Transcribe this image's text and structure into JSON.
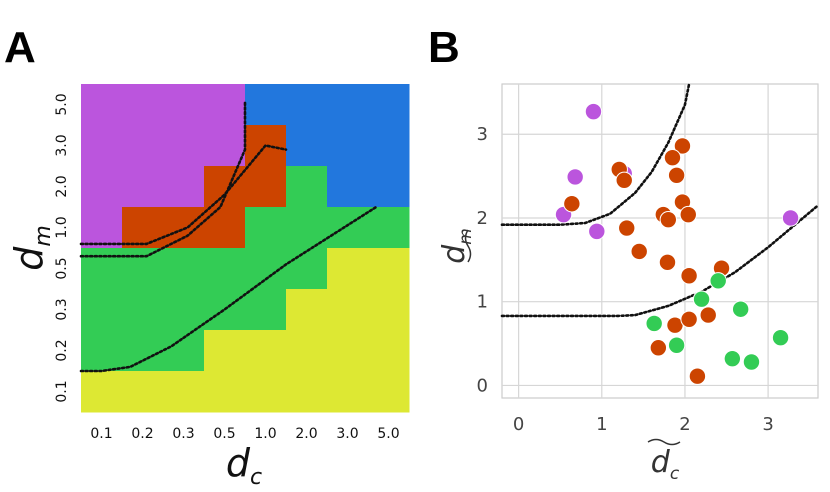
{
  "chart_data": [
    {
      "panel": "A",
      "type": "heatmap",
      "xlabel": "d",
      "xlabel_sub": "c",
      "ylabel": "d",
      "ylabel_sub": "m",
      "x_ticks": [
        "0.1",
        "0.2",
        "0.3",
        "0.5",
        "1.0",
        "2.0",
        "3.0",
        "5.0"
      ],
      "y_ticks": [
        "0.1",
        "0.2",
        "0.3",
        "0.5",
        "1.0",
        "2.0",
        "3.0",
        "5.0"
      ],
      "colors": {
        "purple": "#bb55dd",
        "red": "#cc4400",
        "green": "#33cc55",
        "yellow": "#dde833",
        "blue": "#2277dd"
      },
      "grid_rows_top_to_bottom": [
        [
          "purple",
          "purple",
          "purple",
          "purple",
          "blue",
          "blue",
          "blue",
          "blue"
        ],
        [
          "purple",
          "purple",
          "purple",
          "purple",
          "red",
          "blue",
          "blue",
          "blue"
        ],
        [
          "purple",
          "purple",
          "purple",
          "red",
          "red",
          "green",
          "blue",
          "blue"
        ],
        [
          "purple",
          "red",
          "red",
          "red",
          "green",
          "green",
          "green",
          "green"
        ],
        [
          "green",
          "green",
          "green",
          "green",
          "green",
          "green",
          "yellow",
          "yellow"
        ],
        [
          "green",
          "green",
          "green",
          "green",
          "green",
          "yellow",
          "yellow",
          "yellow"
        ],
        [
          "green",
          "green",
          "green",
          "yellow",
          "yellow",
          "yellow",
          "yellow",
          "yellow"
        ],
        [
          "yellow",
          "yellow",
          "yellow",
          "yellow",
          "yellow",
          "yellow",
          "yellow",
          "yellow"
        ]
      ],
      "boundary_curves": [
        [
          [
            0,
            3.8
          ],
          [
            1,
            3.8
          ],
          [
            1.6,
            3.8
          ],
          [
            2.6,
            4.3
          ],
          [
            3.4,
            5.0
          ],
          [
            4.0,
            6.4
          ],
          [
            4.0,
            7.6
          ]
        ],
        [
          [
            0,
            4.1
          ],
          [
            1,
            4.1
          ],
          [
            1.6,
            4.1
          ],
          [
            2.6,
            4.5
          ],
          [
            3.5,
            5.3
          ],
          [
            4.5,
            6.5
          ],
          [
            5.0,
            6.4
          ]
        ],
        [
          [
            0,
            1.0
          ],
          [
            0.5,
            1.0
          ],
          [
            1.2,
            1.1
          ],
          [
            2.2,
            1.6
          ],
          [
            3.5,
            2.5
          ],
          [
            5.0,
            3.6
          ],
          [
            7.2,
            5.0
          ]
        ]
      ]
    },
    {
      "panel": "B",
      "type": "scatter",
      "xlabel": "d",
      "xlabel_sub": "c",
      "ylabel": "d",
      "ylabel_sub": "m",
      "xlim": [
        -0.2,
        3.6
      ],
      "ylim": [
        -0.15,
        3.6
      ],
      "x_ticks": [
        0,
        1,
        2,
        3
      ],
      "y_ticks": [
        0,
        1,
        2,
        3
      ],
      "colors": {
        "purple": "#bb55dd",
        "red": "#cc4400",
        "green": "#33cc55"
      },
      "series": [
        {
          "name": "purple",
          "points": [
            [
              0.9,
              3.27
            ],
            [
              0.68,
              2.49
            ],
            [
              0.54,
              2.04
            ],
            [
              0.94,
              1.84
            ],
            [
              1.27,
              2.53
            ],
            [
              3.27,
              2.0
            ]
          ]
        },
        {
          "name": "red",
          "points": [
            [
              1.97,
              2.86
            ],
            [
              1.21,
              2.58
            ],
            [
              1.85,
              2.72
            ],
            [
              1.27,
              2.45
            ],
            [
              1.9,
              2.51
            ],
            [
              0.64,
              2.17
            ],
            [
              1.97,
              2.19
            ],
            [
              1.74,
              2.04
            ],
            [
              2.04,
              2.04
            ],
            [
              1.8,
              1.98
            ],
            [
              1.3,
              1.88
            ],
            [
              1.45,
              1.6
            ],
            [
              1.79,
              1.47
            ],
            [
              2.05,
              1.31
            ],
            [
              2.44,
              1.4
            ],
            [
              1.88,
              0.72
            ],
            [
              2.05,
              0.79
            ],
            [
              2.28,
              0.84
            ],
            [
              1.68,
              0.45
            ],
            [
              2.15,
              0.11
            ]
          ]
        },
        {
          "name": "green",
          "points": [
            [
              2.2,
              1.03
            ],
            [
              2.4,
              1.25
            ],
            [
              1.63,
              0.74
            ],
            [
              2.67,
              0.91
            ],
            [
              1.9,
              0.48
            ],
            [
              2.57,
              0.32
            ],
            [
              2.8,
              0.28
            ],
            [
              3.15,
              0.57
            ]
          ]
        }
      ],
      "curves": [
        [
          [
            -0.2,
            1.92
          ],
          [
            0.5,
            1.92
          ],
          [
            0.8,
            1.94
          ],
          [
            1.1,
            2.05
          ],
          [
            1.4,
            2.3
          ],
          [
            1.6,
            2.55
          ],
          [
            1.8,
            2.9
          ],
          [
            2.0,
            3.35
          ],
          [
            2.05,
            3.6
          ]
        ],
        [
          [
            -0.2,
            0.83
          ],
          [
            1.2,
            0.83
          ],
          [
            1.4,
            0.84
          ],
          [
            1.8,
            0.95
          ],
          [
            2.2,
            1.12
          ],
          [
            2.6,
            1.35
          ],
          [
            3.0,
            1.65
          ],
          [
            3.6,
            2.15
          ]
        ]
      ]
    }
  ],
  "labels": {
    "panel_a": "A",
    "panel_b": "B"
  }
}
